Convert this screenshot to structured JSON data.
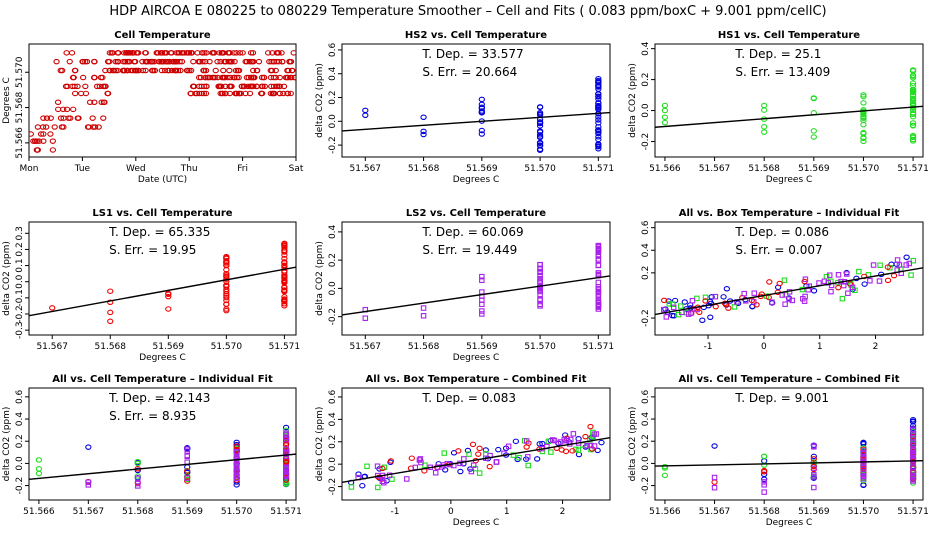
{
  "figure": {
    "title": "HDP   AIRCOA E   080225 to 080229   Temperature Smoother – Cell and Fits ( 0.083  ppm/boxC +  9.001  ppm/cellC)"
  },
  "colors": {
    "HS2": "#0000dd",
    "HS1": "#22dd22",
    "LS1": "#ee0000",
    "LS2": "#aa22ee",
    "cellTemp": "#cc0000",
    "fitLine": "#000000"
  },
  "chart_data": [
    {
      "type": "scatter",
      "title": "Cell Temperature",
      "xlabel": "Date (UTC)",
      "ylabel": "Degrees C",
      "x_tick_labels": [
        "Mon",
        "Tue",
        "Wed",
        "Thu",
        "Fri",
        "Sat"
      ],
      "x_tick_values": [
        0,
        1,
        2,
        3,
        4,
        5
      ],
      "xlim": [
        0,
        5
      ],
      "y_tick_labels": [
        "51.566",
        "51.568",
        "51.570"
      ],
      "y_tick_values": [
        51.566,
        51.568,
        51.57
      ],
      "ylim": [
        51.5652,
        51.5716
      ],
      "y_levels": [
        51.5656,
        51.5661,
        51.5665,
        51.5669,
        51.5674,
        51.5679,
        51.5683,
        51.5688,
        51.5692,
        51.5697,
        51.5701,
        51.5706,
        51.5711
      ],
      "series": [
        {
          "name": "cell temperature",
          "color_key": "cellTemp"
        }
      ]
    },
    {
      "type": "scatter",
      "title": "HS2 vs. Cell Temperature",
      "xlabel": "Degrees C",
      "ylabel": "delta CO2 (ppm)",
      "x_tick_labels": [
        "51.567",
        "51.568",
        "51.569",
        "51.570",
        "51.571"
      ],
      "x_tick_values": [
        51.567,
        51.568,
        51.569,
        51.57,
        51.571
      ],
      "xlim": [
        51.5666,
        51.5712
      ],
      "y_tick_labels": [
        "-0.2",
        "0.0",
        "0.2",
        "0.4",
        "0.6"
      ],
      "y_tick_values": [
        -0.2,
        0.0,
        0.2,
        0.4,
        0.6
      ],
      "ylim": [
        -0.3,
        0.65
      ],
      "fit": {
        "slope": 33.577,
        "x0": 51.569,
        "y0": 0.0
      },
      "annotations": [
        "T. Dep. =  33.577",
        "S. Err. =  20.664"
      ],
      "series": [
        {
          "name": "HS2",
          "color_key": "HS2",
          "x_levels": [
            51.567,
            51.568,
            51.569,
            51.57,
            51.571
          ],
          "counts": [
            2,
            3,
            10,
            25,
            45
          ],
          "y_means": [
            -0.03,
            -0.05,
            0.02,
            -0.05,
            0.06
          ],
          "y_spread": [
            0.14,
            0.1,
            0.18,
            0.2,
            0.3
          ]
        }
      ]
    },
    {
      "type": "scatter",
      "title": "HS1 vs. Cell Temperature",
      "xlabel": "Degrees C",
      "ylabel": "delta CO2 (ppm)",
      "x_tick_labels": [
        "51.566",
        "51.567",
        "51.568",
        "51.569",
        "51.570",
        "51.571"
      ],
      "x_tick_values": [
        51.566,
        51.567,
        51.568,
        51.569,
        51.57,
        51.571
      ],
      "xlim": [
        51.5658,
        51.5712
      ],
      "y_tick_labels": [
        "-0.2",
        "0.0",
        "0.2",
        "0.4"
      ],
      "y_tick_values": [
        -0.2,
        0.0,
        0.2,
        0.4
      ],
      "ylim": [
        -0.3,
        0.43
      ],
      "fit": {
        "slope": 25.1,
        "x0": 51.5685,
        "y0": -0.04
      },
      "annotations": [
        "T. Dep. =  25.1",
        "S. Err. =  13.409"
      ],
      "series": [
        {
          "name": "HS1",
          "color_key": "HS1",
          "x_levels": [
            51.566,
            51.568,
            51.569,
            51.57,
            51.571
          ],
          "counts": [
            4,
            5,
            5,
            18,
            40
          ],
          "y_means": [
            -0.06,
            -0.03,
            -0.05,
            -0.05,
            0.05
          ],
          "y_spread": [
            0.1,
            0.12,
            0.14,
            0.16,
            0.25
          ]
        }
      ]
    },
    {
      "type": "scatter",
      "title": "LS1 vs. Cell Temperature",
      "xlabel": "Degrees C",
      "ylabel": "delta CO2 (ppm)",
      "x_tick_labels": [
        "51.567",
        "51.568",
        "51.569",
        "51.570",
        "51.571"
      ],
      "x_tick_values": [
        51.567,
        51.568,
        51.569,
        51.57,
        51.571
      ],
      "xlim": [
        51.5666,
        51.5712
      ],
      "y_tick_labels": [
        "-0.3",
        "-0.2",
        "-0.1",
        "0.0",
        "0.1",
        "0.2",
        "0.3"
      ],
      "y_tick_values": [
        -0.3,
        -0.2,
        -0.1,
        0.0,
        0.1,
        0.2,
        0.3
      ],
      "ylim": [
        -0.33,
        0.37
      ],
      "fit": {
        "slope": 65.335,
        "x0": 51.5689,
        "y0": -0.06
      },
      "annotations": [
        "T. Dep. =  65.335",
        "S. Err. =  19.95"
      ],
      "series": [
        {
          "name": "LS1",
          "color_key": "LS1",
          "x_levels": [
            51.567,
            51.568,
            51.569,
            51.57,
            51.571
          ],
          "counts": [
            1,
            4,
            4,
            30,
            45
          ],
          "y_means": [
            -0.18,
            -0.15,
            -0.1,
            0.0,
            0.05
          ],
          "y_spread": [
            0.02,
            0.16,
            0.2,
            0.18,
            0.2
          ]
        }
      ]
    },
    {
      "type": "scatter",
      "title": "LS2 vs. Cell Temperature",
      "xlabel": "Degrees C",
      "ylabel": "delta CO2 (ppm)",
      "x_tick_labels": [
        "51.567",
        "51.568",
        "51.569",
        "51.570",
        "51.571"
      ],
      "x_tick_values": [
        51.567,
        51.568,
        51.569,
        51.57,
        51.571
      ],
      "xlim": [
        51.5666,
        51.5712
      ],
      "y_tick_labels": [
        "-0.2",
        "0.0",
        "0.2",
        "0.4"
      ],
      "y_tick_values": [
        -0.2,
        0.0,
        0.2,
        0.4
      ],
      "ylim": [
        -0.33,
        0.47
      ],
      "fit": {
        "slope": 60.069,
        "x0": 51.5689,
        "y0": -0.05
      },
      "annotations": [
        "T. Dep. =  60.069",
        "S. Err. =  19.449"
      ],
      "series": [
        {
          "name": "LS2",
          "color_key": "LS2",
          "x_levels": [
            51.567,
            51.568,
            51.569,
            51.57,
            51.571
          ],
          "counts": [
            2,
            2,
            8,
            25,
            40
          ],
          "y_means": [
            -0.2,
            -0.2,
            -0.03,
            0.02,
            0.08
          ],
          "y_spread": [
            0.1,
            0.08,
            0.2,
            0.16,
            0.24
          ]
        }
      ]
    },
    {
      "type": "scatter",
      "title": "All vs. Box Temperature – Individual Fit",
      "xlabel": "",
      "ylabel": "",
      "x_tick_labels": [
        "-1",
        "0",
        "1",
        "2"
      ],
      "x_tick_values": [
        -1,
        0,
        1,
        2
      ],
      "xlim": [
        -1.95,
        2.85
      ],
      "y_tick_labels": [
        "-0.2",
        "0.2",
        "0.4",
        "0.6"
      ],
      "y_tick_values": [
        -0.2,
        0.2,
        0.4,
        0.6
      ],
      "ylim": [
        -0.35,
        0.65
      ],
      "fit": {
        "slope": 0.086,
        "x0": 0.0,
        "y0": 0.0
      },
      "annotations": [
        "T. Dep. =  0.086",
        "S. Err. =  0.007"
      ],
      "cloud": {
        "x_range": [
          -1.8,
          2.7
        ],
        "slope": 0.086,
        "noise": 0.12,
        "counts": {
          "HS2": 38,
          "HS1": 26,
          "LS1": 26,
          "LS2": 48
        }
      }
    },
    {
      "type": "scatter",
      "title": "All vs. Cell Temperature – Individual Fit",
      "xlabel": "",
      "ylabel": "delta CO2 (ppm)",
      "x_tick_labels": [
        "51.566",
        "51.567",
        "51.568",
        "51.569",
        "51.570",
        "51.571"
      ],
      "x_tick_values": [
        51.566,
        51.567,
        51.568,
        51.569,
        51.57,
        51.571
      ],
      "xlim": [
        51.5658,
        51.5712
      ],
      "y_tick_labels": [
        "-0.2",
        "0.0",
        "0.2",
        "0.4",
        "0.6"
      ],
      "y_tick_values": [
        -0.2,
        0.0,
        0.2,
        0.4,
        0.6
      ],
      "ylim": [
        -0.33,
        0.68
      ],
      "fit": {
        "slope": 42.143,
        "x0": 51.5685,
        "y0": -0.03
      },
      "annotations": [
        "T. Dep. =  42.143",
        "S. Err. =  8.935"
      ],
      "series": [
        {
          "name": "HS2",
          "color_key": "HS2",
          "x_levels": [
            51.567,
            51.568,
            51.569,
            51.57,
            51.571
          ],
          "counts": [
            1,
            3,
            6,
            14,
            22
          ],
          "y_means": [
            0.05,
            -0.05,
            0.0,
            0.0,
            0.1
          ],
          "y_spread": [
            0.12,
            0.1,
            0.18,
            0.2,
            0.3
          ]
        },
        {
          "name": "HS1",
          "color_key": "HS1",
          "x_levels": [
            51.566,
            51.568,
            51.569,
            51.57,
            51.571
          ],
          "counts": [
            3,
            3,
            3,
            10,
            18
          ],
          "y_means": [
            -0.05,
            -0.03,
            -0.05,
            -0.02,
            0.05
          ],
          "y_spread": [
            0.12,
            0.1,
            0.12,
            0.16,
            0.25
          ]
        },
        {
          "name": "LS1",
          "color_key": "LS1",
          "x_levels": [
            51.567,
            51.568,
            51.569,
            51.57,
            51.571
          ],
          "counts": [
            1,
            2,
            3,
            14,
            20
          ],
          "y_means": [
            -0.18,
            -0.1,
            -0.08,
            0.0,
            0.05
          ],
          "y_spread": [
            0.04,
            0.1,
            0.14,
            0.16,
            0.2
          ]
        },
        {
          "name": "LS2",
          "color_key": "LS2",
          "x_levels": [
            51.567,
            51.568,
            51.569,
            51.57,
            51.571
          ],
          "counts": [
            2,
            3,
            6,
            16,
            24
          ],
          "y_means": [
            -0.2,
            -0.18,
            -0.02,
            0.02,
            0.08
          ],
          "y_spread": [
            0.08,
            0.08,
            0.2,
            0.16,
            0.24
          ]
        }
      ]
    },
    {
      "type": "scatter",
      "title": "All vs. Box Temperature – Combined Fit",
      "xlabel": "Degrees C",
      "ylabel": "delta CO2 (ppm)",
      "x_tick_labels": [
        "-1",
        "0",
        "1",
        "2"
      ],
      "x_tick_values": [
        -1,
        0,
        1,
        2
      ],
      "xlim": [
        -1.95,
        2.85
      ],
      "y_tick_labels": [
        "-0.2",
        "0.0",
        "0.2",
        "0.4",
        "0.6"
      ],
      "y_tick_values": [
        -0.2,
        0.0,
        0.2,
        0.4,
        0.6
      ],
      "ylim": [
        -0.32,
        0.68
      ],
      "fit": {
        "slope": 0.083,
        "x0": 0.0,
        "y0": 0.0
      },
      "annotations": [
        "T. Dep. =  0.083"
      ],
      "cloud": {
        "x_range": [
          -1.8,
          2.7
        ],
        "slope": 0.083,
        "noise": 0.12,
        "counts": {
          "HS2": 38,
          "HS1": 26,
          "LS1": 26,
          "LS2": 48
        }
      }
    },
    {
      "type": "scatter",
      "title": "All vs. Cell Temperature – Combined Fit",
      "xlabel": "Degrees C",
      "ylabel": "delta CO2 (ppm)",
      "x_tick_labels": [
        "51.566",
        "51.567",
        "51.568",
        "51.569",
        "51.570",
        "51.571"
      ],
      "x_tick_values": [
        51.566,
        51.567,
        51.568,
        51.569,
        51.57,
        51.571
      ],
      "xlim": [
        51.5658,
        51.5712
      ],
      "y_tick_labels": [
        "-0.2",
        "0.0",
        "0.2",
        "0.4",
        "0.6"
      ],
      "y_tick_values": [
        -0.2,
        0.0,
        0.2,
        0.4,
        0.6
      ],
      "ylim": [
        -0.33,
        0.68
      ],
      "fit": {
        "slope": 9.001,
        "x0": 51.5685,
        "y0": 0.0
      },
      "annotations": [
        "T. Dep. =  9.001"
      ],
      "series": [
        {
          "name": "HS2",
          "color_key": "HS2",
          "x_levels": [
            51.567,
            51.568,
            51.569,
            51.57,
            51.571
          ],
          "counts": [
            1,
            3,
            6,
            14,
            22
          ],
          "y_means": [
            0.05,
            -0.05,
            0.0,
            0.0,
            0.1
          ],
          "y_spread": [
            0.12,
            0.1,
            0.18,
            0.2,
            0.3
          ]
        },
        {
          "name": "HS1",
          "color_key": "HS1",
          "x_levels": [
            51.566,
            51.568,
            51.569,
            51.57,
            51.571
          ],
          "counts": [
            3,
            3,
            3,
            10,
            18
          ],
          "y_means": [
            -0.05,
            -0.03,
            -0.05,
            -0.02,
            0.05
          ],
          "y_spread": [
            0.12,
            0.1,
            0.12,
            0.16,
            0.25
          ]
        },
        {
          "name": "LS1",
          "color_key": "LS1",
          "x_levels": [
            51.567,
            51.568,
            51.569,
            51.57,
            51.571
          ],
          "counts": [
            1,
            2,
            3,
            14,
            20
          ],
          "y_means": [
            -0.18,
            -0.1,
            -0.08,
            0.0,
            0.05
          ],
          "y_spread": [
            0.04,
            0.1,
            0.14,
            0.16,
            0.2
          ]
        },
        {
          "name": "LS2",
          "color_key": "LS2",
          "x_levels": [
            51.567,
            51.568,
            51.569,
            51.57,
            51.571
          ],
          "counts": [
            2,
            3,
            6,
            16,
            24
          ],
          "y_means": [
            -0.2,
            -0.18,
            -0.02,
            0.02,
            0.08
          ],
          "y_spread": [
            0.08,
            0.08,
            0.2,
            0.16,
            0.24
          ]
        }
      ]
    }
  ]
}
